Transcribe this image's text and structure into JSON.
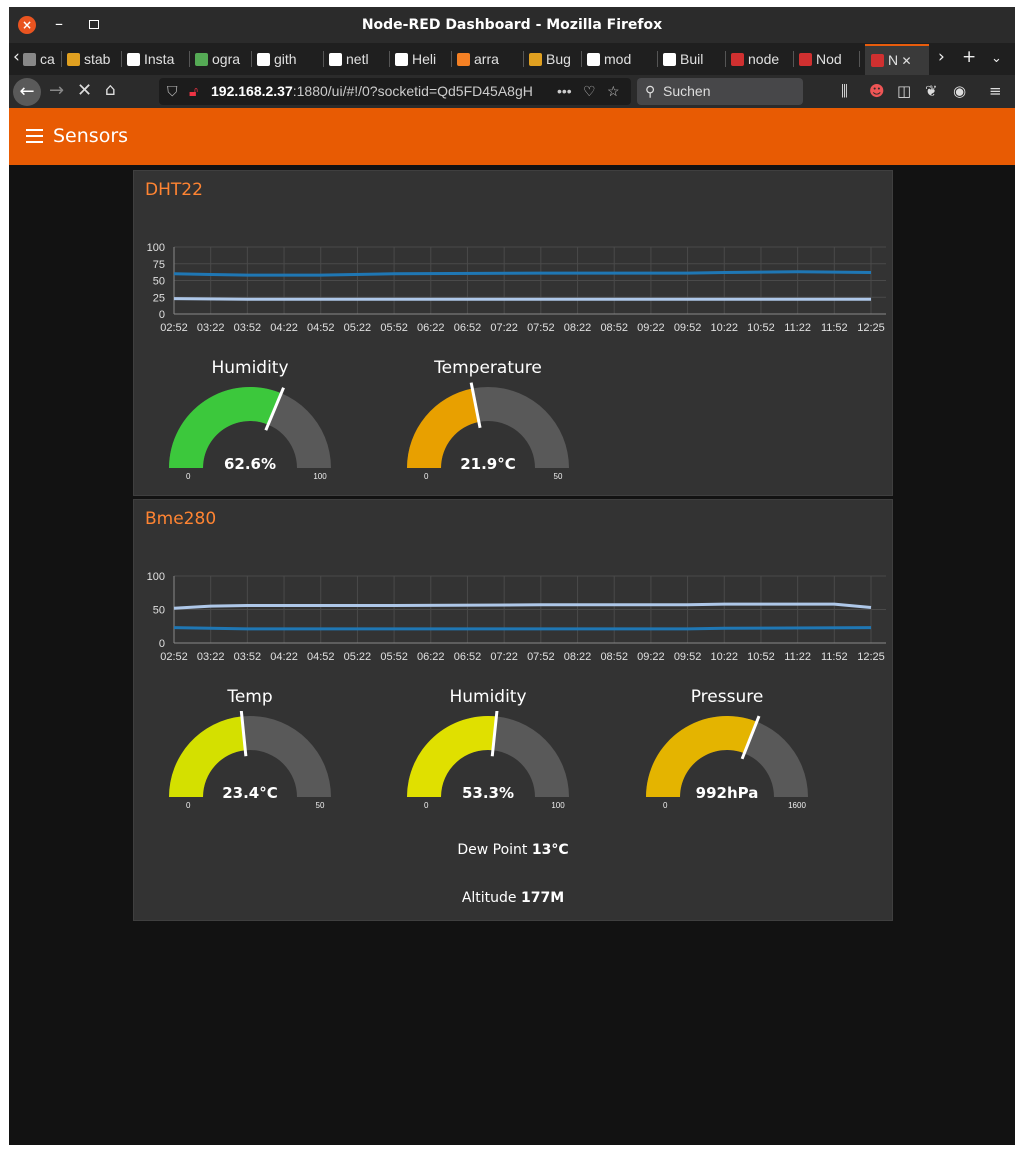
{
  "window": {
    "title": "Node-RED Dashboard - Mozilla Firefox"
  },
  "tabs": [
    {
      "label": "ca",
      "icon": "page-icon",
      "color": "#888888"
    },
    {
      "label": "stab",
      "icon": "ionic-icon",
      "color": "#e0a020"
    },
    {
      "label": "Insta",
      "icon": "arrow-icon",
      "color": "#ffffff"
    },
    {
      "label": "ogra",
      "icon": "eye-icon",
      "color": "#55aa55"
    },
    {
      "label": "gith",
      "icon": "github-icon",
      "color": "#ffffff"
    },
    {
      "label": "netl",
      "icon": "github-icon",
      "color": "#ffffff"
    },
    {
      "label": "Heli",
      "icon": "wikipedia-icon",
      "color": "#ffffff"
    },
    {
      "label": "arra",
      "icon": "stackoverflow-icon",
      "color": "#f48024"
    },
    {
      "label": "Bug",
      "icon": "ionic-icon",
      "color": "#e0a020"
    },
    {
      "label": "mod",
      "icon": "github-icon",
      "color": "#ffffff"
    },
    {
      "label": "Buil",
      "icon": "arrow-icon",
      "color": "#ffffff"
    },
    {
      "label": "node",
      "icon": "nodered-icon",
      "color": "#d03030"
    },
    {
      "label": "Nod",
      "icon": "nodered-icon",
      "color": "#d03030"
    },
    {
      "label": "N",
      "icon": "nodered-icon",
      "color": "#d03030"
    }
  ],
  "nav": {
    "url_host": "192.168.2.37",
    "url_rest": ":1880/ui/#!/0?socketid=Qd5FD45A8gH",
    "url_more": "•••",
    "search_placeholder": "Suchen"
  },
  "app": {
    "title": "Sensors"
  },
  "groups": [
    {
      "title": "DHT22",
      "gauges": [
        {
          "title": "Humidity",
          "value_text": "62.6%",
          "value": 62.6,
          "min": "0",
          "max": "100",
          "max_num": 100,
          "color": "#3cc83c"
        },
        {
          "title": "Temperature",
          "value_text": "21.9°C",
          "value": 21.9,
          "min": "0",
          "max": "50",
          "max_num": 50,
          "color": "#e8a000"
        }
      ]
    },
    {
      "title": "Bme280",
      "gauges": [
        {
          "title": "Temp",
          "value_text": "23.4°C",
          "value": 23.4,
          "min": "0",
          "max": "50",
          "max_num": 50,
          "color": "#d4e000"
        },
        {
          "title": "Humidity",
          "value_text": "53.3%",
          "value": 53.3,
          "min": "0",
          "max": "100",
          "max_num": 100,
          "color": "#e0e000"
        },
        {
          "title": "Pressure",
          "value_text": "992hPa",
          "value": 992,
          "min": "0",
          "max": "1600",
          "max_num": 1600,
          "color": "#e4b400"
        }
      ],
      "texts": [
        {
          "label": "Dew Point",
          "value": "13°C"
        },
        {
          "label": "Altitude",
          "value": "177M"
        }
      ]
    }
  ],
  "chart_data": [
    {
      "type": "line",
      "x_ticks": [
        "02:52",
        "03:22",
        "03:52",
        "04:22",
        "04:52",
        "05:22",
        "05:52",
        "06:22",
        "06:52",
        "07:22",
        "07:52",
        "08:22",
        "08:52",
        "09:22",
        "09:52",
        "10:22",
        "10:52",
        "11:22",
        "11:52",
        "12:25"
      ],
      "y_ticks": [
        "0",
        "25",
        "50",
        "75",
        "100"
      ],
      "ylim": [
        0,
        100
      ],
      "series": [
        {
          "color": "#1f77b4",
          "x": [
            "02:52",
            "03:22",
            "03:52",
            "04:52",
            "05:52",
            "07:52",
            "09:52",
            "10:22",
            "11:22",
            "12:25"
          ],
          "values": [
            60,
            59,
            58,
            58,
            60,
            61,
            61,
            62,
            63,
            62
          ]
        },
        {
          "color": "#aec7e8",
          "x": [
            "02:52",
            "03:52",
            "05:52",
            "07:52",
            "09:52",
            "12:25"
          ],
          "values": [
            23,
            22,
            22,
            22,
            22,
            22
          ]
        }
      ]
    },
    {
      "type": "line",
      "x_ticks": [
        "02:52",
        "03:22",
        "03:52",
        "04:22",
        "04:52",
        "05:22",
        "05:52",
        "06:22",
        "06:52",
        "07:22",
        "07:52",
        "08:22",
        "08:52",
        "09:22",
        "09:52",
        "10:22",
        "10:52",
        "11:22",
        "11:52",
        "12:25"
      ],
      "y_ticks": [
        "0",
        "50",
        "100"
      ],
      "ylim": [
        0,
        100
      ],
      "series": [
        {
          "color": "#aec7e8",
          "x": [
            "02:52",
            "03:22",
            "03:52",
            "05:52",
            "07:52",
            "09:52",
            "10:22",
            "11:52",
            "12:25"
          ],
          "values": [
            52,
            55,
            56,
            56,
            57,
            57,
            58,
            58,
            53
          ]
        },
        {
          "color": "#1f77b4",
          "x": [
            "02:52",
            "03:22",
            "03:52",
            "05:52",
            "07:52",
            "09:52",
            "10:22",
            "12:25"
          ],
          "values": [
            23,
            22,
            21,
            21,
            21,
            21,
            22,
            23
          ]
        }
      ]
    }
  ]
}
